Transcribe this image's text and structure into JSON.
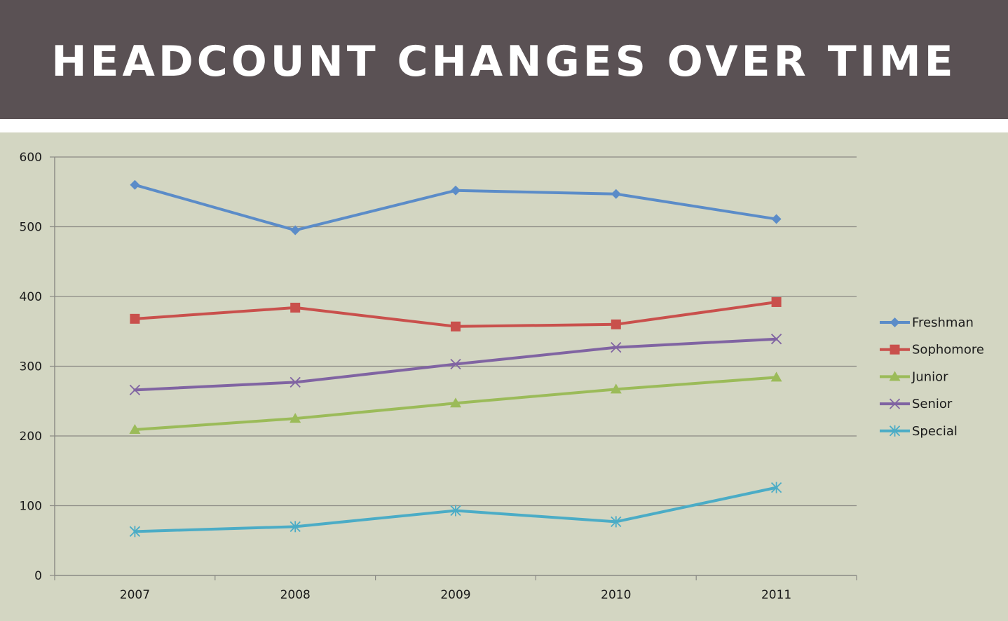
{
  "slide": {
    "title": "HEADCOUNT CHANGES OVER TIME"
  },
  "colors": {
    "header_bg": "#5a5154",
    "chart_bg": "#d3d6c2",
    "gridline": "#8a8a84",
    "Freshman": "#5b8cc8",
    "Sophomore": "#c9504c",
    "Junior": "#9bbb59",
    "Senior": "#8064a2",
    "Special": "#4bacc6"
  },
  "chart_data": {
    "type": "line",
    "title": "",
    "xlabel": "",
    "ylabel": "",
    "categories": [
      "2007",
      "2008",
      "2009",
      "2010",
      "2011"
    ],
    "ylim": [
      0,
      600
    ],
    "yticks": [
      "0",
      "100",
      "200",
      "300",
      "400",
      "500",
      "600"
    ],
    "grid": true,
    "legend_position": "right",
    "series": [
      {
        "name": "Freshman",
        "marker": "diamond",
        "values": [
          560,
          495,
          552,
          547,
          511
        ]
      },
      {
        "name": "Sophomore",
        "marker": "square",
        "values": [
          368,
          384,
          357,
          360,
          392
        ]
      },
      {
        "name": "Junior",
        "marker": "triangle",
        "values": [
          209,
          225,
          247,
          267,
          284
        ]
      },
      {
        "name": "Senior",
        "marker": "x",
        "values": [
          266,
          277,
          303,
          327,
          339
        ]
      },
      {
        "name": "Special",
        "marker": "asterisk",
        "values": [
          63,
          70,
          93,
          77,
          126
        ]
      }
    ]
  }
}
